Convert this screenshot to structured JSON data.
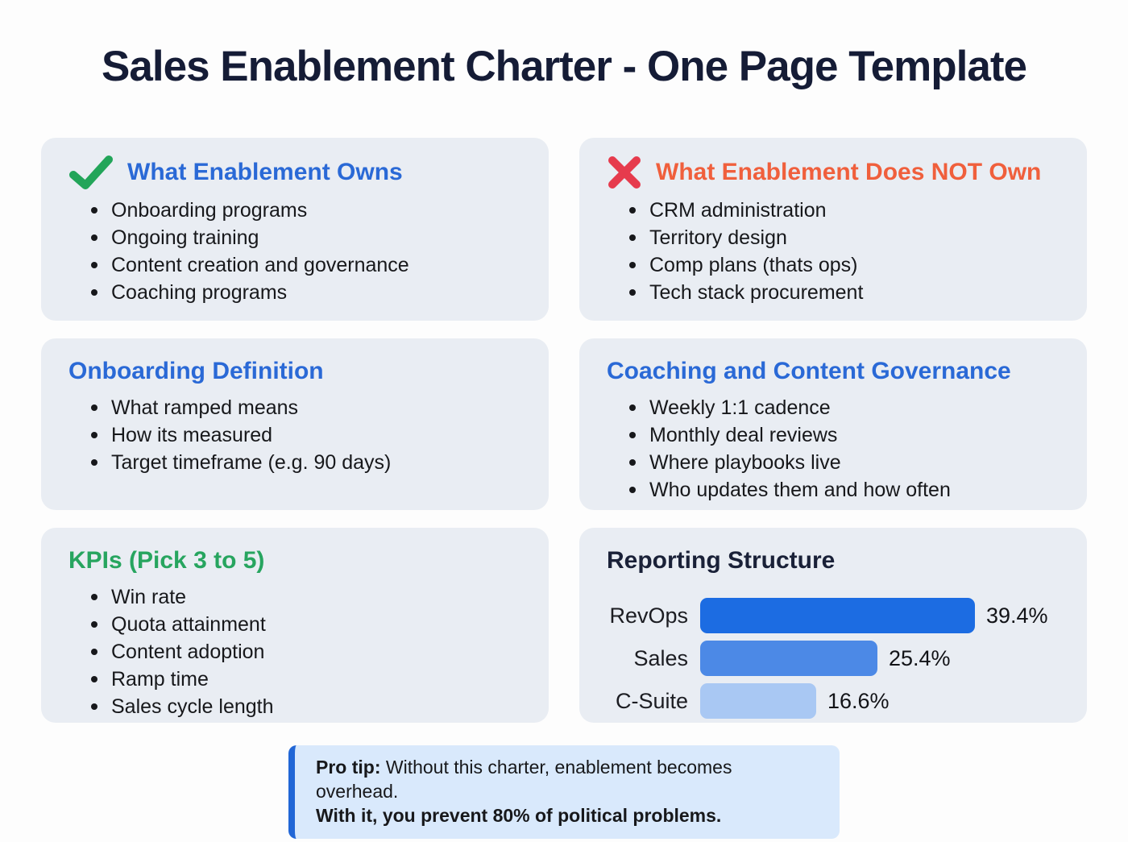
{
  "title": "Sales Enablement Charter - One Page Template",
  "colors": {
    "card_bg": "#e9edf3",
    "heading_blue": "#2a69d6",
    "heading_orange": "#f05f3c",
    "heading_green": "#27a55f",
    "heading_navy": "#1a2138",
    "check_green": "#22a559",
    "x_red": "#e63b4d",
    "protip_bg": "#d9e9fc",
    "protip_border": "#2166d6"
  },
  "cards": {
    "owns": {
      "heading": "What Enablement Owns",
      "icon": "check-icon",
      "bullets": [
        "Onboarding programs",
        "Ongoing training",
        "Content creation and governance",
        "Coaching programs"
      ]
    },
    "not_own": {
      "heading": "What Enablement Does NOT Own",
      "icon": "x-icon",
      "bullets": [
        "CRM administration",
        "Territory design",
        "Comp plans (thats ops)",
        "Tech stack procurement"
      ]
    },
    "onboarding": {
      "heading": "Onboarding Definition",
      "bullets": [
        "What ramped means",
        "How its measured",
        "Target timeframe (e.g. 90 days)"
      ]
    },
    "coaching": {
      "heading": "Coaching and Content Governance",
      "bullets": [
        "Weekly 1:1 cadence",
        "Monthly deal reviews",
        "Where playbooks live",
        "Who updates them and how often"
      ]
    },
    "kpis": {
      "heading": "KPIs (Pick 3 to 5)",
      "bullets": [
        "Win rate",
        "Quota attainment",
        "Content adoption",
        "Ramp time",
        "Sales cycle length"
      ]
    },
    "reporting": {
      "heading": "Reporting Structure"
    }
  },
  "chart_data": {
    "type": "bar",
    "orientation": "horizontal",
    "title": "Reporting Structure",
    "categories": [
      "RevOps",
      "Sales",
      "C-Suite"
    ],
    "values": [
      39.4,
      25.4,
      16.6
    ],
    "value_labels": [
      "39.4%",
      "25.4%",
      "16.6%"
    ],
    "bar_colors": [
      "#1c6ce2",
      "#4c89e6",
      "#a9c8f3"
    ],
    "xlim": [
      0,
      45
    ],
    "grid": false,
    "legend": false
  },
  "pro_tip": {
    "label": "Pro tip:",
    "line1": " Without this charter, enablement becomes overhead.",
    "line2": "With it, you prevent 80% of political problems."
  }
}
